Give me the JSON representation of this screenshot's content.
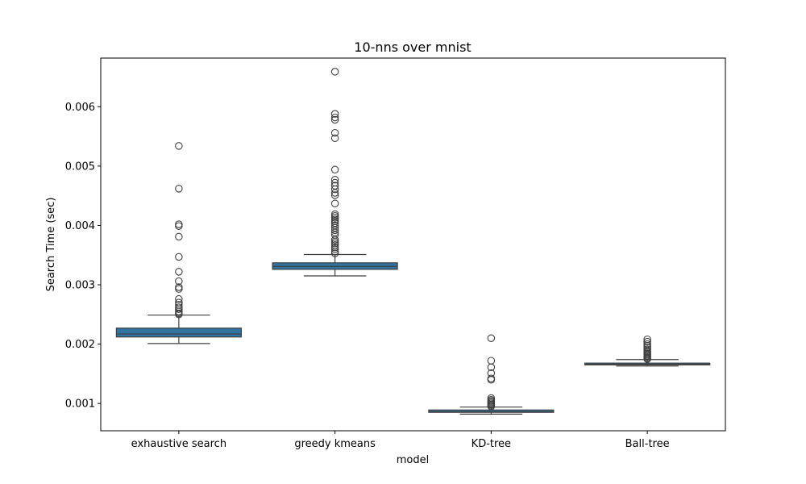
{
  "chart_data": {
    "type": "box",
    "title": "10-nns over mnist",
    "xlabel": "model",
    "ylabel": "Search Time (sec)",
    "ylim": [
      0.00054,
      0.00682
    ],
    "yticks": [
      0.001,
      0.002,
      0.003,
      0.004,
      0.005,
      0.006
    ],
    "ytick_labels": [
      "0.001",
      "0.002",
      "0.003",
      "0.004",
      "0.005",
      "0.006"
    ],
    "grid": false,
    "legend": "none",
    "box_color": "#3274a1",
    "edge_color": "#3f3f3f",
    "categories": [
      "exhaustive search",
      "greedy kmeans",
      "KD-tree",
      "Ball-tree"
    ],
    "boxes": [
      {
        "label": "exhaustive search",
        "whisker_low": 0.00201,
        "q1": 0.00212,
        "median": 0.00217,
        "q3": 0.00227,
        "whisker_high": 0.00249,
        "outliers": [
          0.00534,
          0.00462,
          0.00402,
          0.00399,
          0.00381,
          0.00347,
          0.00322,
          0.00306,
          0.00296,
          0.00293,
          0.00276,
          0.0027,
          0.00266,
          0.00262,
          0.00259,
          0.00255,
          0.00252,
          0.0025
        ]
      },
      {
        "label": "greedy kmeans",
        "whisker_low": 0.00315,
        "q1": 0.00326,
        "median": 0.00331,
        "q3": 0.00337,
        "whisker_high": 0.00351,
        "outliers": [
          0.00659,
          0.00588,
          0.00582,
          0.00578,
          0.00556,
          0.00547,
          0.00494,
          0.00477,
          0.00472,
          0.00467,
          0.00461,
          0.00455,
          0.00451,
          0.00437,
          0.00419,
          0.00416,
          0.00413,
          0.0041,
          0.00407,
          0.00404,
          0.004,
          0.00396,
          0.00392,
          0.00388,
          0.00384,
          0.00376,
          0.00373,
          0.0037,
          0.00367,
          0.00363,
          0.0036,
          0.00356,
          0.00353
        ]
      },
      {
        "label": "KD-tree",
        "whisker_low": 0.00082,
        "q1": 0.00085,
        "median": 0.00086,
        "q3": 0.00089,
        "whisker_high": 0.00094,
        "outliers": [
          0.0021,
          0.00172,
          0.00161,
          0.00151,
          0.00142,
          0.0014,
          0.00109,
          0.00106,
          0.00104,
          0.00102,
          0.001,
          0.00098,
          0.00096,
          0.00095
        ]
      },
      {
        "label": "Ball-tree",
        "whisker_low": 0.00163,
        "q1": 0.00165,
        "median": 0.00166,
        "q3": 0.00168,
        "whisker_high": 0.00174,
        "outliers": [
          0.00208,
          0.00204,
          0.002,
          0.00197,
          0.00194,
          0.00191,
          0.00188,
          0.00186,
          0.00184,
          0.00182,
          0.0018,
          0.00178,
          0.00176,
          0.00175
        ]
      }
    ]
  }
}
